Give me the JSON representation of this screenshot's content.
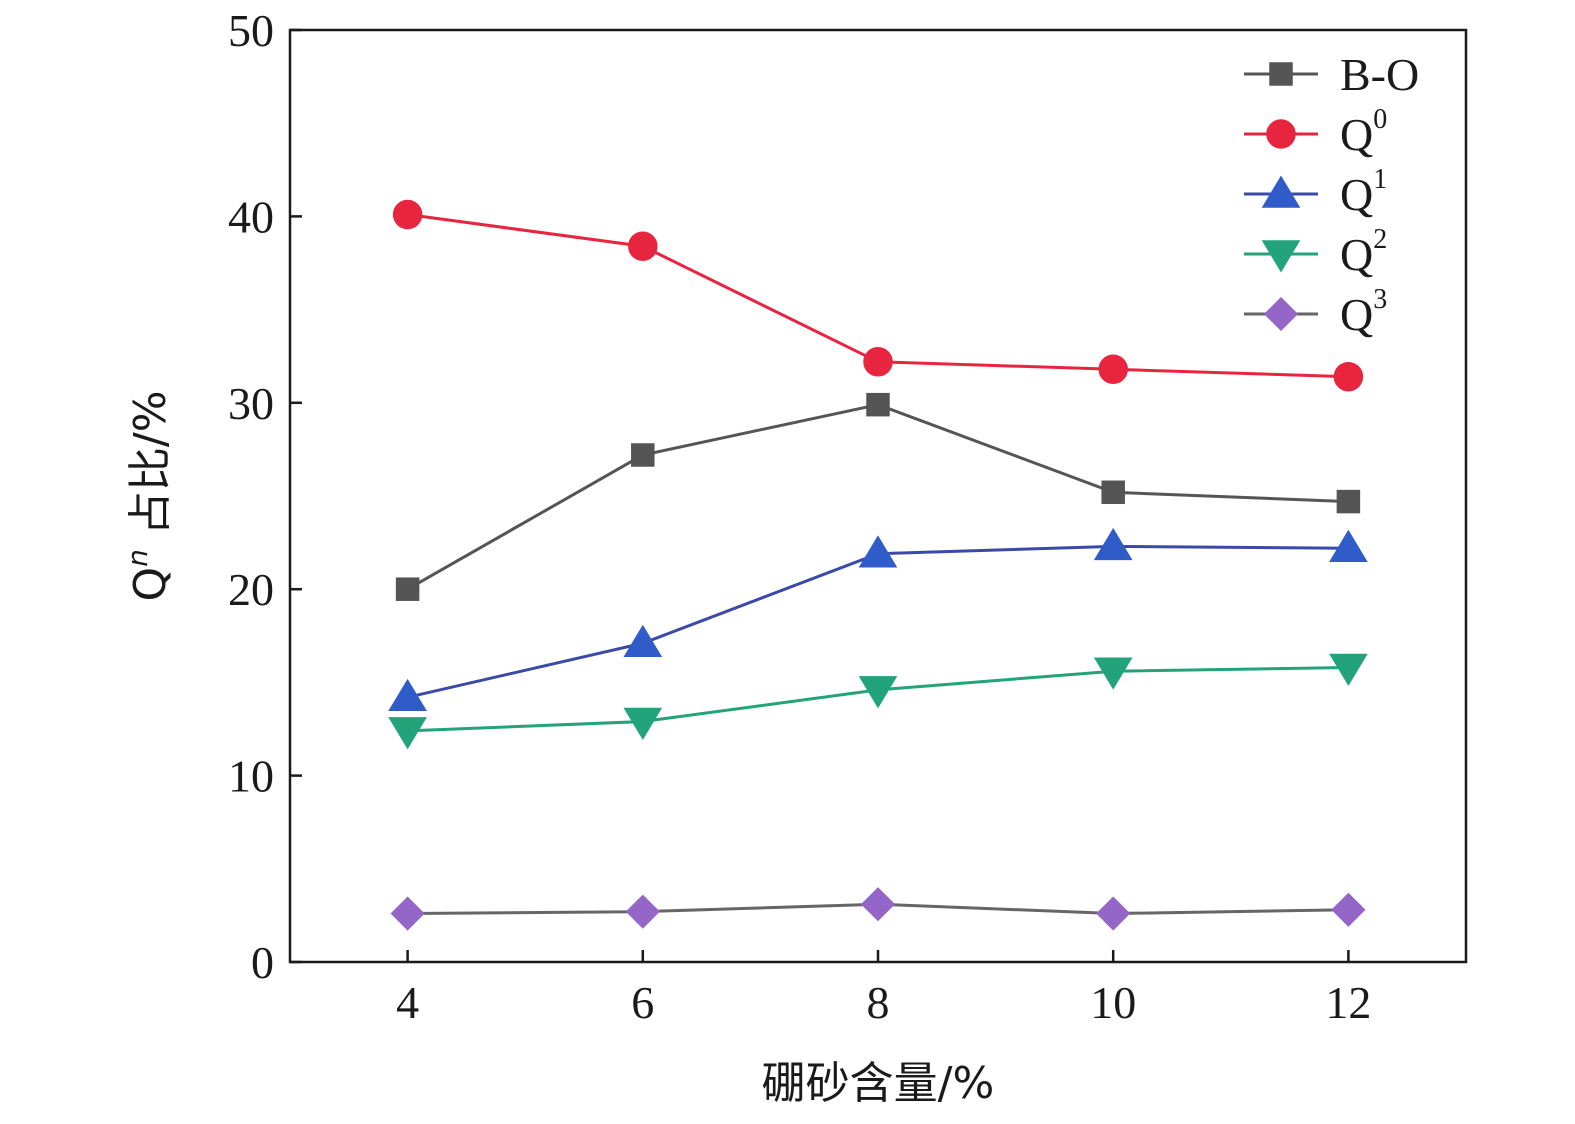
{
  "chart_data": {
    "type": "line",
    "xlabel": "硼砂含量/%",
    "ylabel_base": "Q",
    "ylabel_sup": "n",
    "ylabel_rest": " 占比/%",
    "x": [
      4,
      6,
      8,
      10,
      12
    ],
    "xticks": [
      "4",
      "6",
      "8",
      "10",
      "12"
    ],
    "yticks": [
      "0",
      "10",
      "20",
      "30",
      "40",
      "50"
    ],
    "xlim": [
      3,
      13
    ],
    "ylim": [
      0,
      50
    ],
    "legend_position": "top-right",
    "series": [
      {
        "name": "B-O",
        "label_base": "B-O",
        "label_sup": "",
        "marker": "square",
        "color": "#555555",
        "line_color": "#555555",
        "values": [
          20.0,
          27.2,
          29.9,
          25.2,
          24.7
        ]
      },
      {
        "name": "Q0",
        "label_base": "Q",
        "label_sup": "0",
        "marker": "circle",
        "color": "#e8253f",
        "line_color": "#e8253f",
        "values": [
          40.1,
          38.4,
          32.2,
          31.8,
          31.4
        ]
      },
      {
        "name": "Q1",
        "label_base": "Q",
        "label_sup": "1",
        "marker": "triangle-up",
        "color": "#2f5cc9",
        "line_color": "#3b4aa8",
        "values": [
          14.2,
          17.1,
          21.9,
          22.3,
          22.2
        ]
      },
      {
        "name": "Q2",
        "label_base": "Q",
        "label_sup": "2",
        "marker": "triangle-down",
        "color": "#22a37a",
        "line_color": "#22a37a",
        "values": [
          12.4,
          12.9,
          14.6,
          15.6,
          15.8
        ]
      },
      {
        "name": "Q3",
        "label_base": "Q",
        "label_sup": "3",
        "marker": "diamond",
        "color": "#9466c7",
        "line_color": "#666666",
        "values": [
          2.6,
          2.7,
          3.1,
          2.6,
          2.8
        ]
      }
    ]
  }
}
